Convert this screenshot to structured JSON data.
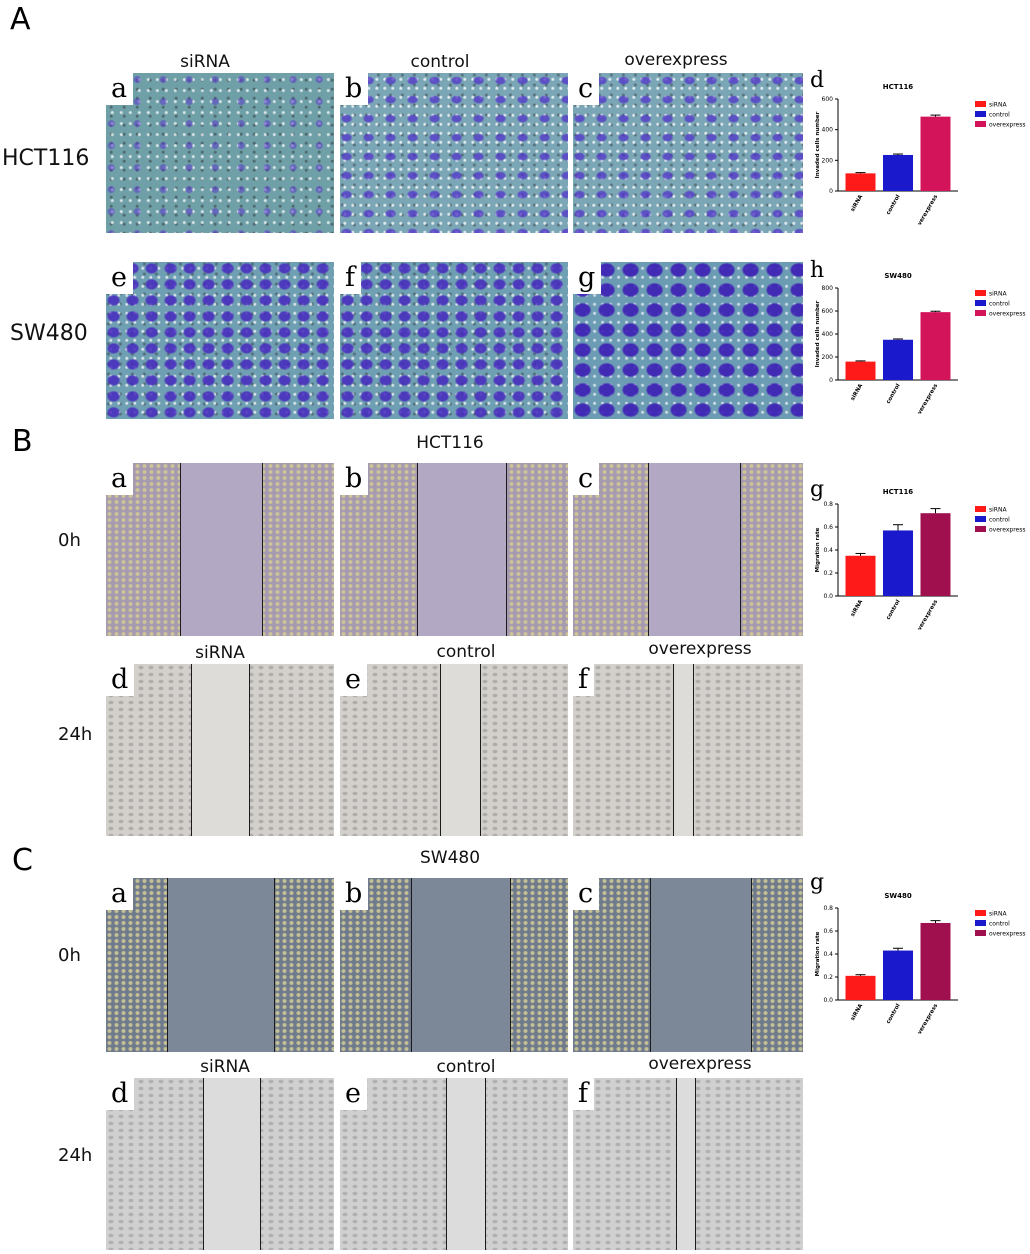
{
  "sections": {
    "A": {
      "letter": "A",
      "col_labels": [
        "siRNA",
        "control",
        "overexpress"
      ],
      "row_labels": [
        "HCT116",
        "SW480"
      ],
      "subpanels": [
        "a",
        "b",
        "c",
        "e",
        "f",
        "g"
      ],
      "chart_letters": [
        "d",
        "h"
      ]
    },
    "B": {
      "letter": "B",
      "title": "HCT116",
      "col_labels": [
        "siRNA",
        "control",
        "overexpress"
      ],
      "row_labels": [
        "0h",
        "24h"
      ],
      "subpanels": [
        "a",
        "b",
        "c",
        "d",
        "e",
        "f"
      ],
      "chart_letters": [
        "g"
      ]
    },
    "C": {
      "letter": "C",
      "title": "SW480",
      "col_labels": [
        "siRNA",
        "control",
        "overexpress"
      ],
      "row_labels": [
        "0h",
        "24h"
      ],
      "subpanels": [
        "a",
        "b",
        "c",
        "d",
        "e",
        "f"
      ],
      "chart_letters": [
        "g"
      ]
    }
  },
  "colors": {
    "siRNA": "#ff1a1a",
    "control": "#1a1acc",
    "overexpress_A": "#d4145a",
    "overexpress_B": "#a0104e"
  },
  "chart_data": [
    {
      "id": "A-d",
      "type": "bar",
      "title": "HCT116",
      "ylabel": "Invaded cells number",
      "xlabel": "",
      "categories": [
        "siRNA",
        "control",
        "overexpress"
      ],
      "values": [
        115,
        235,
        485
      ],
      "errors": [
        5,
        6,
        10
      ],
      "ylim": [
        0,
        600
      ],
      "yticks": [
        0,
        200,
        400,
        600
      ],
      "legend": [
        "siRNA",
        "control",
        "overexpress"
      ],
      "legend_position": "right",
      "colors": [
        "#ff1a1a",
        "#1a1acc",
        "#d4145a"
      ]
    },
    {
      "id": "A-h",
      "type": "bar",
      "title": "SW480",
      "ylabel": "Invaded cells number",
      "xlabel": "",
      "categories": [
        "siRNA",
        "control",
        "overexpress"
      ],
      "values": [
        160,
        350,
        590
      ],
      "errors": [
        6,
        7,
        8
      ],
      "ylim": [
        0,
        800
      ],
      "yticks": [
        0,
        200,
        400,
        600,
        800
      ],
      "legend": [
        "siRNA",
        "control",
        "overexpress"
      ],
      "legend_position": "right",
      "colors": [
        "#ff1a1a",
        "#1a1acc",
        "#d4145a"
      ]
    },
    {
      "id": "B-g",
      "type": "bar",
      "title": "HCT116",
      "ylabel": "Migration rate",
      "xlabel": "",
      "categories": [
        "siRNA",
        "control",
        "overexpress"
      ],
      "values": [
        0.35,
        0.57,
        0.72
      ],
      "errors": [
        0.02,
        0.05,
        0.04
      ],
      "ylim": [
        0,
        0.8
      ],
      "yticks": [
        "0.0",
        "0.2",
        "0.4",
        "0.6",
        "0.8"
      ],
      "legend": [
        "siRNA",
        "control",
        "overexpress"
      ],
      "legend_position": "right",
      "colors": [
        "#ff1a1a",
        "#1a1acc",
        "#a0104e"
      ]
    },
    {
      "id": "C-g",
      "type": "bar",
      "title": "SW480",
      "ylabel": "Migration rate",
      "xlabel": "",
      "categories": [
        "siRNA",
        "control",
        "overexpress"
      ],
      "values": [
        0.21,
        0.43,
        0.67
      ],
      "errors": [
        0.01,
        0.02,
        0.02
      ],
      "ylim": [
        0,
        0.8
      ],
      "yticks": [
        "0.0",
        "0.2",
        "0.4",
        "0.6",
        "0.8"
      ],
      "legend": [
        "siRNA",
        "control",
        "overexpress"
      ],
      "legend_position": "right",
      "colors": [
        "#ff1a1a",
        "#1a1acc",
        "#a0104e"
      ]
    }
  ]
}
